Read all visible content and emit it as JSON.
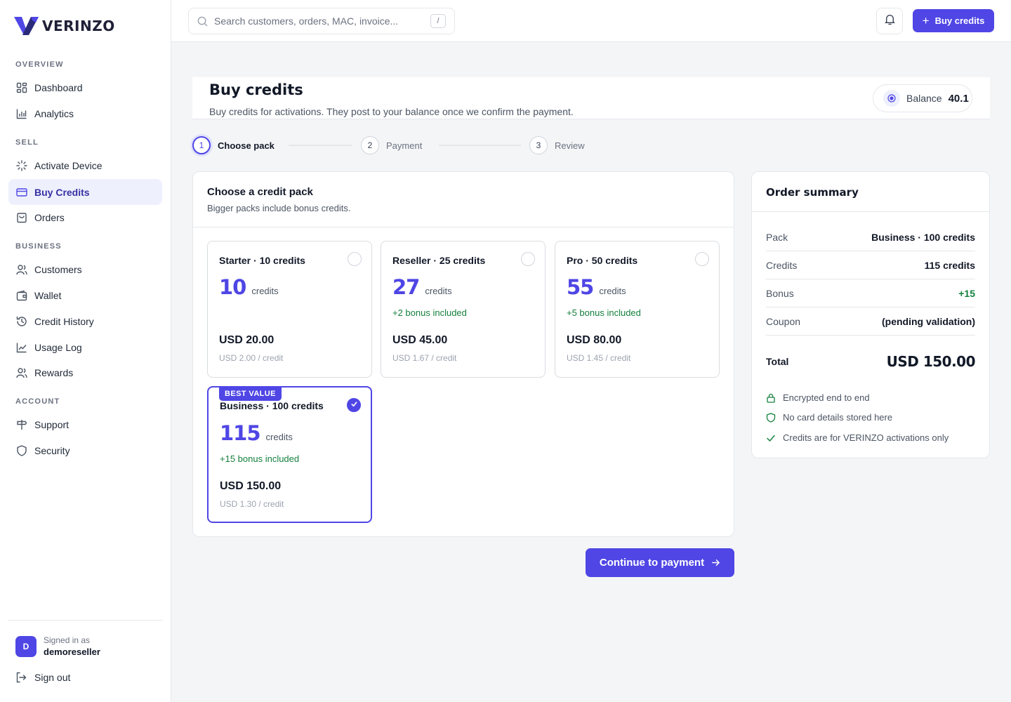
{
  "brand": {
    "name": "VERINZO"
  },
  "sidebar": {
    "sections": [
      "OVERVIEW",
      "SELL",
      "BUSINESS",
      "ACCOUNT"
    ],
    "items": [
      {
        "label": "Dashboard",
        "icon": "grid-icon"
      },
      {
        "label": "Analytics",
        "icon": "bar-chart-icon"
      },
      {
        "label": "Activate Device",
        "icon": "loader-icon"
      },
      {
        "label": "Buy Credits",
        "icon": "credit-card-icon",
        "active": true
      },
      {
        "label": "Orders",
        "icon": "shopping-bag-icon"
      },
      {
        "label": "Customers",
        "icon": "users-icon"
      },
      {
        "label": "Wallet",
        "icon": "wallet-icon"
      },
      {
        "label": "Credit History",
        "icon": "history-icon"
      },
      {
        "label": "Usage Log",
        "icon": "line-chart-icon"
      },
      {
        "label": "Rewards",
        "icon": "users-icon"
      },
      {
        "label": "Support",
        "icon": "signpost-icon"
      },
      {
        "label": "Security",
        "icon": "shield-icon"
      }
    ],
    "user": {
      "avatar_letter": "D",
      "signed_in_label": "Signed in as",
      "username": "demoreseller"
    },
    "sign_out": "Sign out"
  },
  "topbar": {
    "search_placeholder": "Search customers, orders, MAC, invoice...",
    "search_shortcut": "/",
    "buy_button": "Buy credits"
  },
  "page": {
    "title": "Buy credits",
    "subtitle": "Buy credits for activations. They post to your balance once we confirm the payment.",
    "balance_label": "Balance",
    "balance_value": "40.1"
  },
  "steps": [
    {
      "num": "1",
      "label": "Choose pack",
      "active": true
    },
    {
      "num": "2",
      "label": "Payment"
    },
    {
      "num": "3",
      "label": "Review"
    }
  ],
  "packs_panel": {
    "title": "Choose a credit pack",
    "subtitle": "Bigger packs include bonus credits.",
    "packs": [
      {
        "name": "Starter · 10 credits",
        "credits": "10",
        "unit": "credits",
        "bonus": "",
        "price": "USD 20.00",
        "per_credit": "USD 2.00 / credit"
      },
      {
        "name": "Reseller · 25 credits",
        "credits": "27",
        "unit": "credits",
        "bonus": "+2 bonus included",
        "price": "USD 45.00",
        "per_credit": "USD 1.67 / credit"
      },
      {
        "name": "Pro · 50 credits",
        "credits": "55",
        "unit": "credits",
        "bonus": "+5 bonus included",
        "price": "USD 80.00",
        "per_credit": "USD 1.45 / credit"
      },
      {
        "name": "Business · 100 credits",
        "credits": "115",
        "unit": "credits",
        "bonus": "+15 bonus included",
        "price": "USD 150.00",
        "per_credit": "USD 1.30 / credit",
        "tag": "BEST VALUE",
        "selected": true
      }
    ]
  },
  "continue_button": "Continue to payment",
  "summary": {
    "title": "Order summary",
    "rows": [
      {
        "key": "Pack",
        "value": "Business · 100 credits"
      },
      {
        "key": "Credits",
        "value": "115 credits"
      },
      {
        "key": "Bonus",
        "value": "+15"
      },
      {
        "key": "Coupon",
        "value": "(pending validation)"
      }
    ],
    "total_label": "Total",
    "total_value": "USD 150.00",
    "features": [
      "Encrypted end to end",
      "No card details stored here",
      "Credits are for VERINZO activations only"
    ]
  },
  "colors": {
    "accent": "#4f46e5",
    "success": "#15803d"
  }
}
